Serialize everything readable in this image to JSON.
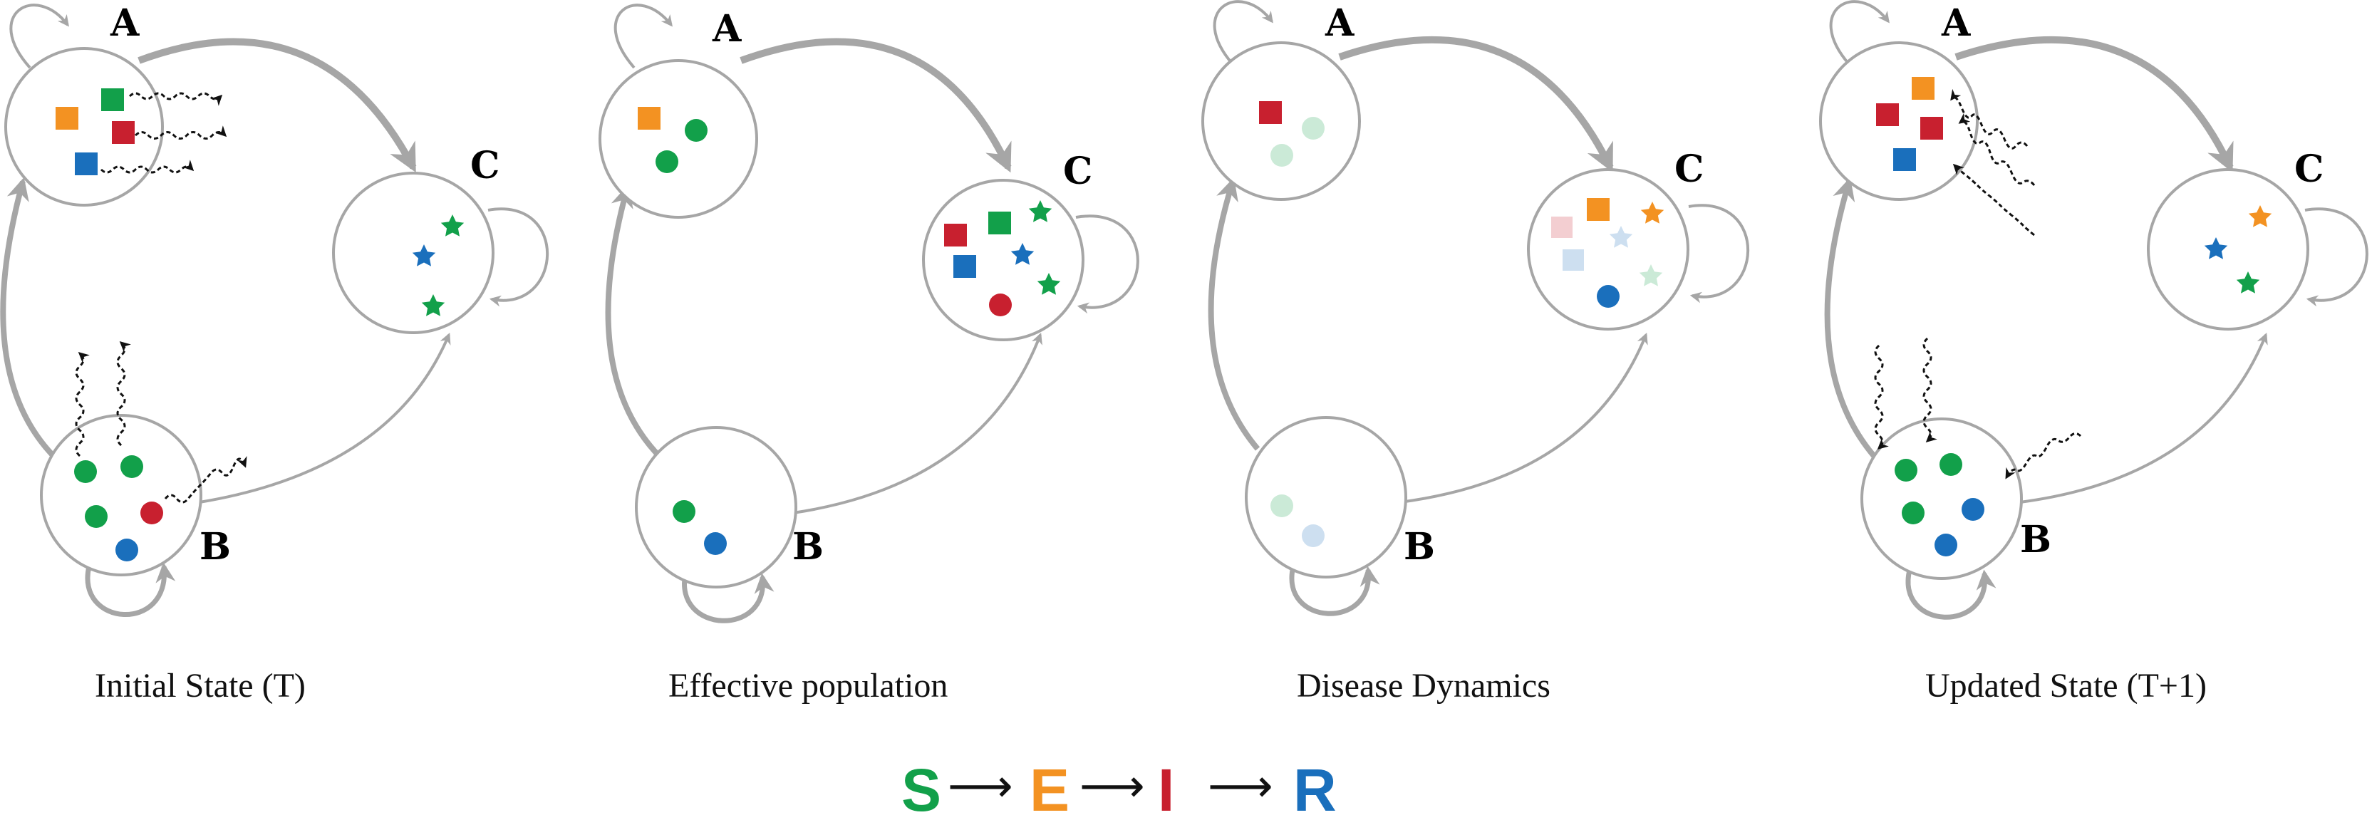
{
  "colors": {
    "S": "#12a04a",
    "E": "#f39222",
    "I": "#c8202f",
    "R": "#1a6fbc",
    "edge": "#a6a6a6",
    "node": "#a6a6a6"
  },
  "node_labels": {
    "A": "A",
    "B": "B",
    "C": "C"
  },
  "panels": [
    {
      "caption": "Initial State (T)"
    },
    {
      "caption": "Effective population"
    },
    {
      "caption": "Disease Dynamics"
    },
    {
      "caption": "Updated State (T+1)"
    }
  ],
  "legend": {
    "states": [
      "S",
      "E",
      "I",
      "R"
    ],
    "arrow": "⟶"
  }
}
